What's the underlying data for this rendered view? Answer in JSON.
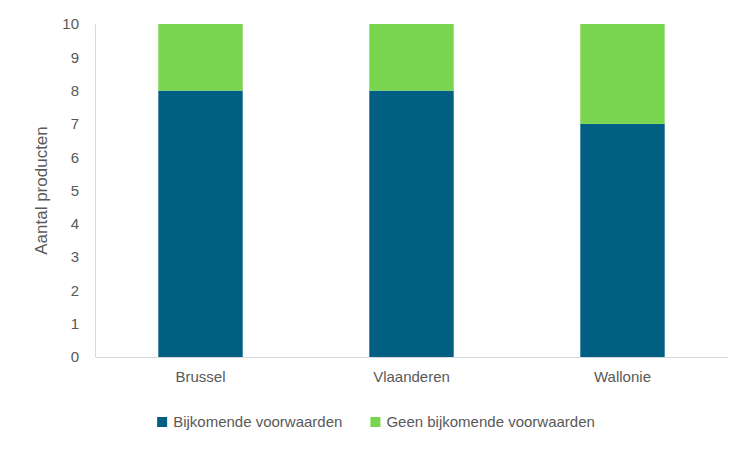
{
  "chart_data": {
    "type": "bar",
    "stacked": true,
    "legend": "bottom",
    "y_label": "Aantal producten",
    "categories": [
      "Brussel",
      "Vlaanderen",
      "Wallonie"
    ],
    "series": [
      {
        "name": "Bijkomende voorwaarden",
        "color": "#005f82",
        "values": [
          8,
          8,
          7
        ]
      },
      {
        "name": "Geen bijkomende voorwaarden",
        "color": "#79d450",
        "values": [
          2,
          2,
          3
        ]
      }
    ],
    "ylim": [
      0,
      10
    ],
    "yticks": [
      0,
      1,
      2,
      3,
      4,
      5,
      6,
      7,
      8,
      9,
      10
    ]
  }
}
